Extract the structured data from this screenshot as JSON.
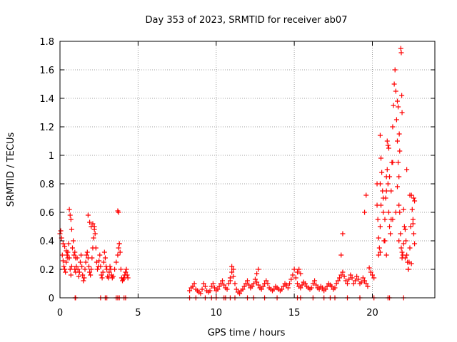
{
  "chart_data": {
    "type": "scatter",
    "title": "Day 353 of 2023, SRMTID for receiver ab07",
    "xlabel": "GPS time / hours",
    "ylabel": "SRMTID / TECUs",
    "xlim": [
      0,
      24
    ],
    "ylim": [
      0,
      1.8
    ],
    "xticks": [
      0,
      5,
      10,
      15,
      20
    ],
    "xtick_labels": [
      "0",
      "5",
      "10",
      "15",
      "20"
    ],
    "yticks": [
      0,
      0.2,
      0.4,
      0.6,
      0.8,
      1,
      1.2,
      1.4,
      1.6,
      1.8
    ],
    "ytick_labels": [
      "0",
      "0.2",
      "0.4",
      "0.6",
      "0.8",
      "1",
      "1.2",
      "1.4",
      "1.6",
      "1.8"
    ],
    "grid": true,
    "marker": "+",
    "color": "#ff0000",
    "series": [
      {
        "name": "SRMTID",
        "x": [
          0.0,
          0.05,
          0.1,
          0.15,
          0.2,
          0.25,
          0.3,
          0.35,
          0.4,
          0.45,
          0.5,
          0.55,
          0.6,
          0.65,
          0.7,
          0.75,
          0.8,
          0.85,
          0.9,
          0.95,
          1.0,
          1.05,
          1.1,
          1.15,
          1.2,
          1.25,
          1.3,
          1.35,
          1.4,
          1.45,
          1.5,
          1.55,
          1.6,
          1.65,
          1.7,
          1.75,
          1.8,
          1.85,
          1.9,
          1.95,
          2.0,
          2.05,
          2.1,
          2.15,
          2.2,
          2.25,
          2.3,
          2.35,
          2.4,
          2.45,
          2.5,
          2.55,
          2.6,
          2.65,
          2.7,
          2.75,
          2.8,
          2.85,
          2.9,
          2.95,
          3.0,
          3.05,
          3.1,
          3.15,
          3.2,
          3.25,
          3.3,
          3.35,
          3.4,
          3.5,
          3.6,
          3.7,
          3.75,
          3.8,
          3.85,
          3.9,
          3.95,
          4.0,
          4.05,
          4.1,
          4.15,
          4.2,
          4.25,
          4.3,
          4.35,
          0.6,
          0.65,
          0.7,
          0.75,
          0.2,
          0.3,
          0.4,
          0.5,
          1.8,
          1.9,
          2.0,
          2.1,
          2.2,
          0.95,
          1.0,
          3.7,
          3.75,
          3.8,
          8.3,
          8.4,
          8.5,
          8.6,
          8.7,
          8.8,
          8.9,
          9.0,
          9.1,
          9.2,
          9.3,
          9.4,
          9.5,
          9.6,
          9.7,
          9.8,
          9.9,
          10.0,
          10.1,
          10.2,
          10.3,
          10.4,
          10.5,
          10.6,
          10.7,
          10.8,
          10.9,
          11.0,
          11.1,
          11.2,
          11.3,
          11.4,
          11.5,
          11.6,
          11.7,
          11.8,
          11.9,
          12.0,
          12.1,
          12.2,
          12.3,
          12.4,
          12.5,
          12.6,
          12.7,
          12.8,
          12.9,
          13.0,
          13.1,
          13.2,
          13.3,
          13.4,
          13.5,
          13.6,
          13.7,
          13.8,
          13.9,
          14.0,
          14.1,
          14.2,
          14.3,
          14.4,
          14.5,
          14.6,
          14.7,
          14.8,
          14.9,
          15.0,
          15.1,
          15.2,
          15.3,
          15.4,
          15.5,
          15.6,
          15.7,
          15.8,
          15.9,
          16.0,
          16.1,
          16.2,
          16.3,
          16.4,
          16.5,
          16.6,
          16.7,
          16.8,
          16.9,
          17.0,
          17.1,
          17.2,
          17.3,
          17.4,
          17.5,
          17.6,
          17.7,
          17.8,
          17.9,
          18.0,
          18.1,
          18.2,
          18.3,
          18.4,
          18.5,
          18.6,
          18.7,
          18.8,
          18.9,
          19.0,
          19.1,
          19.2,
          19.3,
          19.4,
          19.5,
          19.6,
          19.7,
          19.8,
          19.9,
          20.0,
          20.1,
          10.9,
          11.0,
          11.1,
          12.6,
          12.7,
          15.2,
          15.3,
          15.4,
          18.0,
          18.1,
          19.5,
          19.6,
          20.3,
          20.35,
          20.4,
          20.45,
          20.5,
          20.55,
          20.6,
          20.65,
          20.7,
          20.75,
          20.8,
          20.85,
          20.9,
          20.95,
          21.0,
          21.05,
          21.1,
          21.15,
          21.2,
          21.25,
          21.3,
          21.35,
          21.4,
          21.45,
          21.5,
          21.55,
          21.6,
          21.65,
          21.7,
          21.75,
          21.8,
          21.85,
          21.9,
          21.95,
          22.0,
          22.05,
          22.1,
          22.15,
          22.2,
          22.25,
          22.3,
          22.35,
          22.4,
          22.45,
          22.5,
          22.55,
          22.6,
          22.65,
          22.7,
          20.3,
          20.5,
          20.7,
          20.9,
          21.1,
          21.3,
          21.5,
          21.7,
          21.9,
          22.1,
          22.3,
          22.5,
          20.4,
          20.8,
          21.2,
          21.6,
          22.0,
          22.4,
          20.5,
          20.9,
          21.3,
          21.7,
          22.2,
          21.82,
          21.85,
          21.88,
          21.9,
          21.72,
          21.75,
          21.6,
          21.65,
          20.95,
          21.0,
          21.05,
          20.5,
          20.55,
          22.65,
          22.7,
          22.6,
          0.97,
          1.0,
          2.6,
          2.9,
          3.0,
          3.6,
          3.7,
          3.8,
          4.1,
          4.2,
          8.3,
          8.7,
          9.3,
          9.7,
          10.0,
          10.5,
          10.6,
          10.9,
          11.2,
          12.0,
          12.4,
          13.1,
          13.9,
          15.2,
          15.4,
          16.2,
          16.9,
          17.3,
          17.6,
          18.4,
          19.2,
          20.1,
          21.0,
          21.1,
          22.0
        ],
        "y": [
          0.45,
          0.47,
          0.42,
          0.3,
          0.26,
          0.22,
          0.2,
          0.18,
          0.25,
          0.3,
          0.32,
          0.38,
          0.28,
          0.2,
          0.16,
          0.22,
          0.35,
          0.4,
          0.3,
          0.2,
          0.18,
          0.22,
          0.28,
          0.2,
          0.15,
          0.18,
          0.25,
          0.3,
          0.22,
          0.16,
          0.12,
          0.14,
          0.2,
          0.25,
          0.3,
          0.32,
          0.28,
          0.22,
          0.18,
          0.16,
          0.2,
          0.28,
          0.35,
          0.42,
          0.5,
          0.45,
          0.35,
          0.25,
          0.2,
          0.22,
          0.26,
          0.3,
          0.22,
          0.16,
          0.14,
          0.18,
          0.25,
          0.32,
          0.28,
          0.22,
          0.2,
          0.15,
          0.14,
          0.18,
          0.22,
          0.2,
          0.16,
          0.14,
          0.15,
          0.2,
          0.25,
          0.3,
          0.35,
          0.38,
          0.32,
          0.2,
          0.14,
          0.12,
          0.13,
          0.14,
          0.16,
          0.18,
          0.2,
          0.16,
          0.14,
          0.62,
          0.58,
          0.55,
          0.48,
          0.38,
          0.36,
          0.33,
          0.28,
          0.58,
          0.53,
          0.5,
          0.52,
          0.48,
          0.32,
          0.28,
          0.61,
          0.6,
          0.38,
          0.05,
          0.07,
          0.08,
          0.1,
          0.06,
          0.05,
          0.04,
          0.03,
          0.06,
          0.1,
          0.08,
          0.05,
          0.04,
          0.05,
          0.08,
          0.1,
          0.07,
          0.05,
          0.06,
          0.08,
          0.1,
          0.12,
          0.09,
          0.07,
          0.06,
          0.1,
          0.14,
          0.18,
          0.15,
          0.1,
          0.06,
          0.04,
          0.03,
          0.05,
          0.06,
          0.08,
          0.1,
          0.12,
          0.09,
          0.07,
          0.08,
          0.1,
          0.13,
          0.11,
          0.09,
          0.07,
          0.06,
          0.08,
          0.1,
          0.12,
          0.1,
          0.07,
          0.06,
          0.05,
          0.06,
          0.08,
          0.07,
          0.06,
          0.05,
          0.06,
          0.08,
          0.1,
          0.09,
          0.07,
          0.1,
          0.13,
          0.16,
          0.2,
          0.14,
          0.1,
          0.08,
          0.07,
          0.09,
          0.11,
          0.1,
          0.08,
          0.07,
          0.06,
          0.07,
          0.1,
          0.12,
          0.09,
          0.07,
          0.06,
          0.08,
          0.07,
          0.05,
          0.06,
          0.08,
          0.1,
          0.09,
          0.08,
          0.06,
          0.07,
          0.1,
          0.12,
          0.14,
          0.16,
          0.18,
          0.15,
          0.12,
          0.1,
          0.13,
          0.16,
          0.14,
          0.1,
          0.12,
          0.15,
          0.13,
          0.1,
          0.11,
          0.14,
          0.12,
          0.1,
          0.08,
          0.21,
          0.18,
          0.16,
          0.14,
          0.12,
          0.22,
          0.2,
          0.17,
          0.2,
          0.18,
          0.2,
          0.17,
          0.3,
          0.45,
          0.6,
          0.72,
          0.8,
          0.55,
          0.42,
          0.35,
          0.5,
          0.65,
          0.88,
          0.75,
          0.6,
          0.4,
          0.55,
          0.7,
          0.85,
          0.9,
          0.8,
          0.6,
          0.5,
          0.45,
          0.75,
          0.95,
          1.2,
          1.35,
          1.5,
          1.6,
          1.45,
          1.25,
          1.1,
          0.95,
          0.85,
          0.6,
          0.45,
          0.35,
          0.28,
          0.3,
          0.38,
          0.5,
          0.48,
          0.4,
          0.3,
          0.25,
          0.2,
          0.25,
          0.35,
          0.5,
          0.72,
          0.62,
          0.52,
          0.45,
          0.38,
          0.65,
          0.8,
          0.7,
          0.75,
          0.85,
          0.95,
          0.6,
          0.4,
          0.32,
          0.28,
          0.2,
          0.24,
          0.3,
          0.4,
          0.55,
          0.78,
          0.62,
          0.72,
          0.32,
          0.3,
          0.55,
          0.65,
          0.9,
          1.75,
          1.72,
          1.42,
          1.3,
          1.15,
          1.03,
          1.38,
          1.34,
          1.1,
          1.07,
          1.05,
          1.14,
          0.98,
          0.7,
          0.68,
          0.55,
          0.0,
          0.0,
          0.0,
          0.0,
          0.0,
          0.0,
          0.0,
          0.0,
          0.0,
          0.0,
          0.0,
          0.0,
          0.0,
          0.0,
          0.0,
          0.0,
          0.0,
          0.0,
          0.0,
          0.0,
          0.0,
          0.0,
          0.0,
          0.0,
          0.0,
          0.0,
          0.0,
          0.0,
          0.0,
          0.0,
          0.0,
          0.0,
          0.0,
          0.0,
          0.0
        ]
      }
    ]
  }
}
